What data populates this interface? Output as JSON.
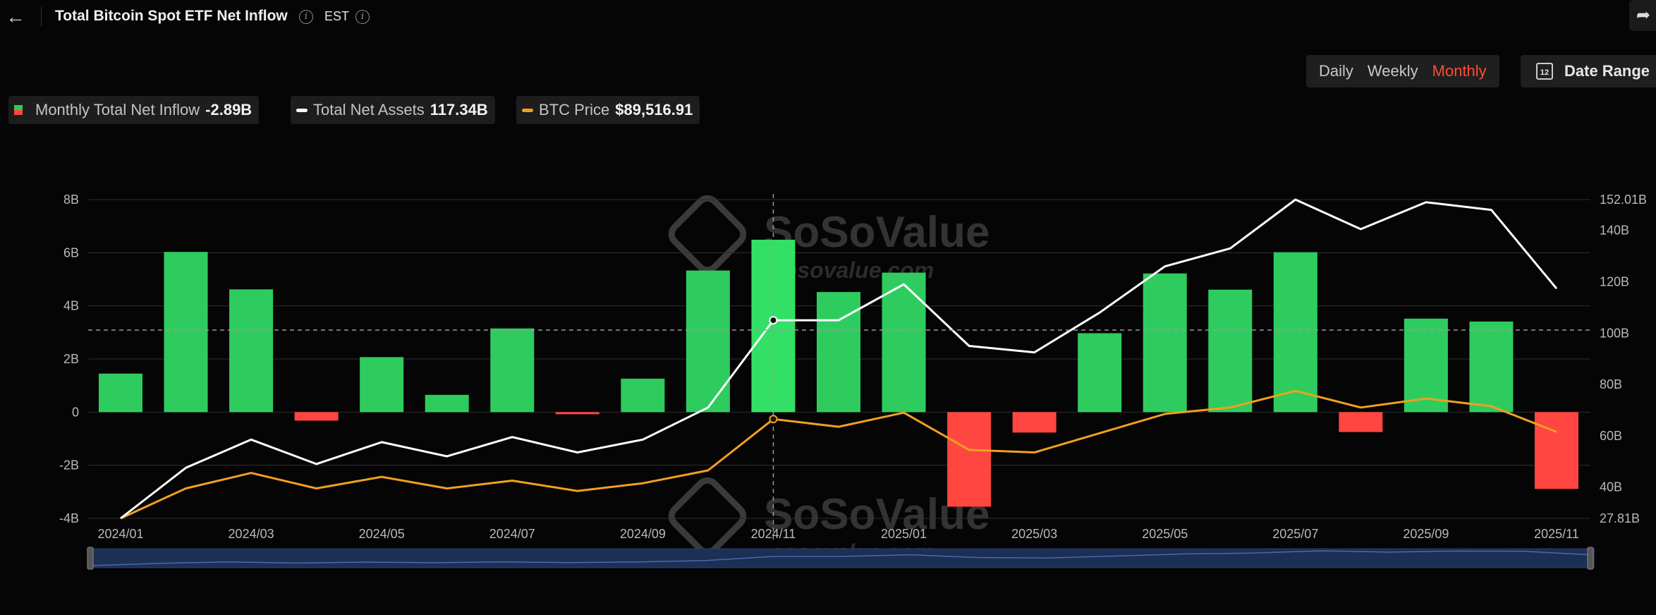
{
  "header": {
    "title": "Total Bitcoin Spot ETF Net Inflow",
    "timezone": "EST",
    "back_icon": "back-arrow-icon",
    "share_icon": "share-icon"
  },
  "controls": {
    "periods": [
      "Daily",
      "Weekly",
      "Monthly"
    ],
    "active_period": "Monthly",
    "date_range_label": "Date Range",
    "calendar_day": "12"
  },
  "legend": [
    {
      "label": "Monthly Total Net Inflow",
      "value": "-2.89B",
      "kind": "bars",
      "color_up": "#2ecc5e",
      "color_down": "#ff4640"
    },
    {
      "label": "Total Net Assets",
      "value": "117.34B",
      "kind": "line",
      "color": "#ffffff"
    },
    {
      "label": "BTC Price",
      "value": "$89,516.91",
      "kind": "line",
      "color": "#f0a020"
    }
  ],
  "watermark": {
    "brand": "SoSoValue",
    "url": "sosovalue.com"
  },
  "chart_data": {
    "type": "bar",
    "categories": [
      "2024/01",
      "2024/02",
      "2024/03",
      "2024/04",
      "2024/05",
      "2024/06",
      "2024/07",
      "2024/08",
      "2024/09",
      "2024/10",
      "2024/11",
      "2024/12",
      "2025/01",
      "2025/02",
      "2025/03",
      "2025/04",
      "2025/05",
      "2025/06",
      "2025/07",
      "2025/08",
      "2025/09",
      "2025/10",
      "2025/11"
    ],
    "x_tick_labels": [
      "2024/01",
      "2024/03",
      "2024/05",
      "2024/07",
      "2024/09",
      "2024/11",
      "2025/01",
      "2025/03",
      "2025/05",
      "2025/07",
      "2025/09",
      "2025/11"
    ],
    "left_axis": {
      "ticks": [
        -4,
        -2,
        0,
        2,
        4,
        6,
        8
      ],
      "tick_labels": [
        "-4B",
        "-2B",
        "0",
        "2B",
        "4B",
        "6B",
        "8B"
      ],
      "range": [
        -4,
        8
      ]
    },
    "right_axis": {
      "range": [
        27.81,
        152.01
      ],
      "ticks": [
        27.81,
        40,
        60,
        80,
        100,
        120,
        140,
        152.01
      ],
      "tick_labels": [
        "27.81B",
        "40B",
        "60B",
        "80B",
        "100B",
        "120B",
        "140B",
        "152.01B"
      ]
    },
    "series": [
      {
        "name": "Monthly Total Net Inflow",
        "axis": "left",
        "kind": "bar",
        "values": [
          1.45,
          6.03,
          4.62,
          -0.32,
          2.07,
          0.65,
          3.15,
          -0.08,
          1.26,
          5.33,
          6.49,
          4.52,
          5.25,
          -3.56,
          -0.77,
          2.97,
          5.22,
          4.61,
          6.02,
          -0.75,
          3.52,
          3.41,
          -2.89
        ]
      },
      {
        "name": "Total Net Assets",
        "axis": "right",
        "kind": "line",
        "values": [
          27.81,
          47.5,
          58.5,
          49.0,
          57.5,
          52.0,
          59.5,
          53.5,
          58.5,
          71.0,
          105.0,
          105.0,
          119.0,
          95.0,
          92.5,
          108.0,
          126.0,
          133.0,
          152.01,
          140.5,
          151.0,
          148.0,
          117.34
        ]
      },
      {
        "name": "BTC Price",
        "axis": "right",
        "kind": "line",
        "values": [
          27.81,
          39.5,
          45.5,
          39.5,
          44.0,
          39.5,
          42.5,
          38.5,
          41.5,
          46.5,
          66.5,
          63.5,
          69.0,
          54.5,
          53.5,
          61.0,
          68.5,
          71.0,
          77.5,
          71.0,
          74.5,
          71.5,
          61.5
        ]
      }
    ],
    "crosshair": {
      "category": "2024/11",
      "left_value": 3.09
    }
  }
}
